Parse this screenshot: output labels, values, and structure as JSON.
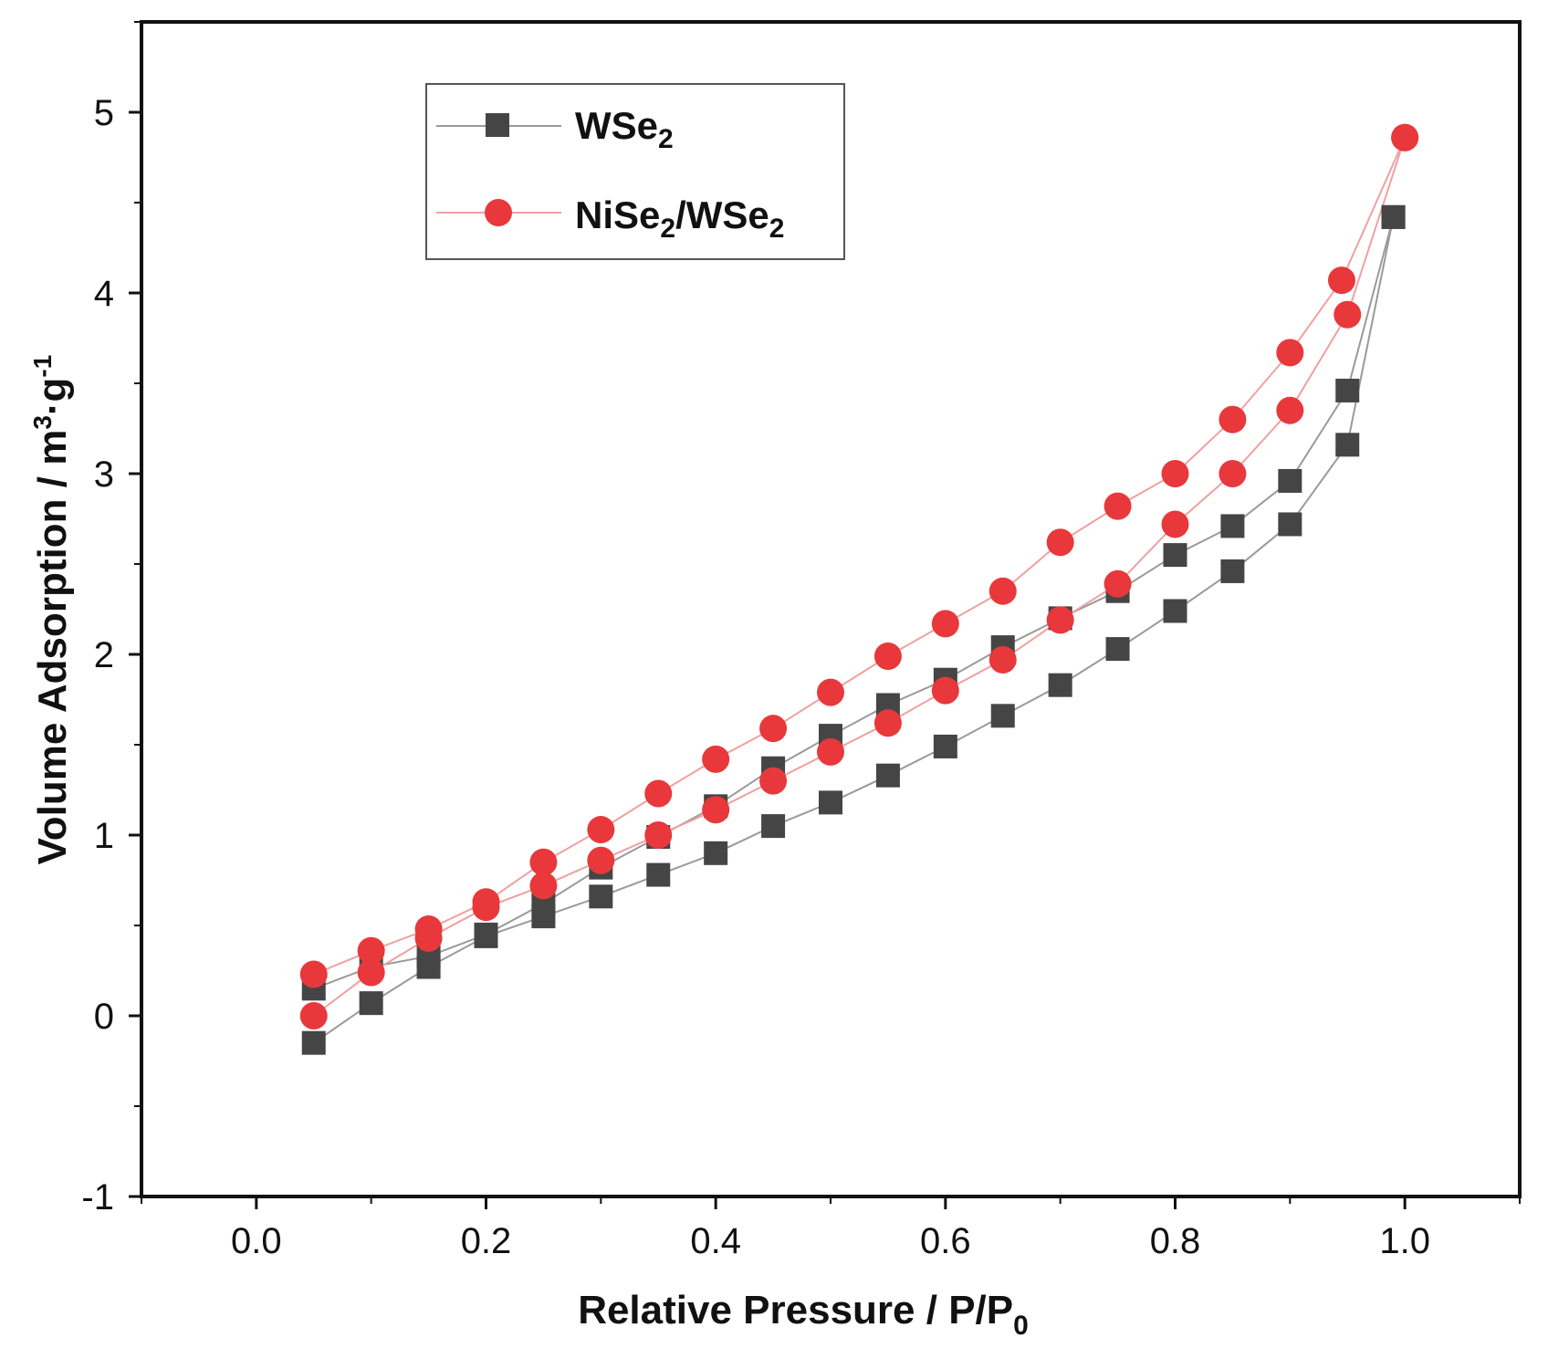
{
  "chart_data": {
    "type": "scatter",
    "title": "",
    "xlabel": "Relative Pressure / P/P0",
    "xlabel_main": "Relative Pressure / P/P",
    "xlabel_sub": "0",
    "ylabel": "Volume Adsorption / m3·g-1",
    "ylabel_main": "Volume Adsorption / m",
    "ylabel_sup1": "3",
    "ylabel_mid": "·g",
    "ylabel_sup2": "-1",
    "xlim": [
      -0.1,
      1.1
    ],
    "ylim": [
      -1,
      5.5
    ],
    "xticks": [
      "0.0",
      "0.2",
      "0.4",
      "0.6",
      "0.8",
      "1.0"
    ],
    "yticks": [
      "-1",
      "0",
      "1",
      "2",
      "3",
      "4",
      "5"
    ],
    "legend_position": "top-left",
    "series": [
      {
        "name": "WSe2",
        "legend_main": "WSe",
        "legend_sub": "2",
        "marker": "square",
        "color": "#454545",
        "line_color": "#9a9a9a",
        "adsorption": [
          [
            0.05,
            -0.15
          ],
          [
            0.1,
            0.07
          ],
          [
            0.15,
            0.27
          ],
          [
            0.2,
            0.44
          ],
          [
            0.25,
            0.55
          ],
          [
            0.3,
            0.66
          ],
          [
            0.35,
            0.78
          ],
          [
            0.4,
            0.9
          ],
          [
            0.45,
            1.05
          ],
          [
            0.5,
            1.18
          ],
          [
            0.55,
            1.33
          ],
          [
            0.6,
            1.49
          ],
          [
            0.65,
            1.66
          ],
          [
            0.7,
            1.83
          ],
          [
            0.75,
            2.03
          ],
          [
            0.8,
            2.24
          ],
          [
            0.85,
            2.46
          ],
          [
            0.9,
            2.72
          ],
          [
            0.95,
            3.16
          ],
          [
            0.99,
            4.42
          ]
        ],
        "desorption": [
          [
            0.99,
            4.42
          ],
          [
            0.95,
            3.46
          ],
          [
            0.9,
            2.96
          ],
          [
            0.85,
            2.71
          ],
          [
            0.8,
            2.55
          ],
          [
            0.75,
            2.35
          ],
          [
            0.7,
            2.2
          ],
          [
            0.65,
            2.04
          ],
          [
            0.6,
            1.86
          ],
          [
            0.55,
            1.72
          ],
          [
            0.5,
            1.55
          ],
          [
            0.45,
            1.37
          ],
          [
            0.4,
            1.16
          ],
          [
            0.35,
            0.99
          ],
          [
            0.3,
            0.82
          ],
          [
            0.25,
            0.62
          ],
          [
            0.2,
            0.45
          ],
          [
            0.15,
            0.33
          ],
          [
            0.1,
            0.27
          ],
          [
            0.05,
            0.15
          ]
        ]
      },
      {
        "name": "NiSe2/WSe2",
        "legend_main1": "NiSe",
        "legend_sub1": "2",
        "legend_main2": "/WSe",
        "legend_sub2": "2",
        "marker": "circle",
        "color": "#e8383b",
        "line_color": "#f0a0a0",
        "adsorption": [
          [
            0.05,
            0.0
          ],
          [
            0.1,
            0.24
          ],
          [
            0.15,
            0.43
          ],
          [
            0.2,
            0.6
          ],
          [
            0.25,
            0.72
          ],
          [
            0.3,
            0.86
          ],
          [
            0.35,
            1.0
          ],
          [
            0.4,
            1.14
          ],
          [
            0.45,
            1.3
          ],
          [
            0.5,
            1.46
          ],
          [
            0.55,
            1.62
          ],
          [
            0.6,
            1.8
          ],
          [
            0.65,
            1.97
          ],
          [
            0.7,
            2.19
          ],
          [
            0.75,
            2.39
          ],
          [
            0.8,
            2.72
          ],
          [
            0.85,
            3.0
          ],
          [
            0.9,
            3.35
          ],
          [
            0.95,
            3.88
          ],
          [
            1.0,
            4.86
          ]
        ],
        "desorption": [
          [
            1.0,
            4.86
          ],
          [
            0.945,
            4.07
          ],
          [
            0.9,
            3.67
          ],
          [
            0.85,
            3.3
          ],
          [
            0.8,
            3.0
          ],
          [
            0.75,
            2.82
          ],
          [
            0.7,
            2.62
          ],
          [
            0.65,
            2.35
          ],
          [
            0.6,
            2.17
          ],
          [
            0.55,
            1.99
          ],
          [
            0.5,
            1.79
          ],
          [
            0.45,
            1.59
          ],
          [
            0.4,
            1.42
          ],
          [
            0.35,
            1.23
          ],
          [
            0.3,
            1.03
          ],
          [
            0.25,
            0.85
          ],
          [
            0.2,
            0.63
          ],
          [
            0.15,
            0.48
          ],
          [
            0.1,
            0.36
          ],
          [
            0.05,
            0.23
          ]
        ]
      }
    ]
  }
}
